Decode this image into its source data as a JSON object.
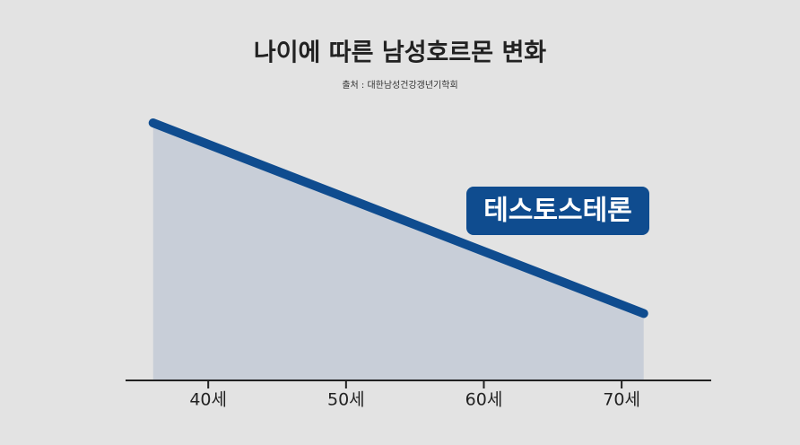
{
  "chart_data": {
    "type": "line",
    "title": "나이에 따른 남성호르몬 변화",
    "subtitle": "출처 : 대한남성건강갱년기학회",
    "x": [
      36,
      71.6
    ],
    "series": [
      {
        "name": "테스토스테론",
        "color": "#0f4c8f",
        "values": [
          100,
          26
        ]
      }
    ],
    "xlim": [
      34,
      76.5
    ],
    "xticks": [
      {
        "value": 40,
        "label": "40세"
      },
      {
        "value": 50,
        "label": "50세"
      },
      {
        "value": 60,
        "label": "60세"
      },
      {
        "value": 70,
        "label": "70세"
      }
    ],
    "ylim": [
      0,
      100
    ],
    "area": true
  }
}
